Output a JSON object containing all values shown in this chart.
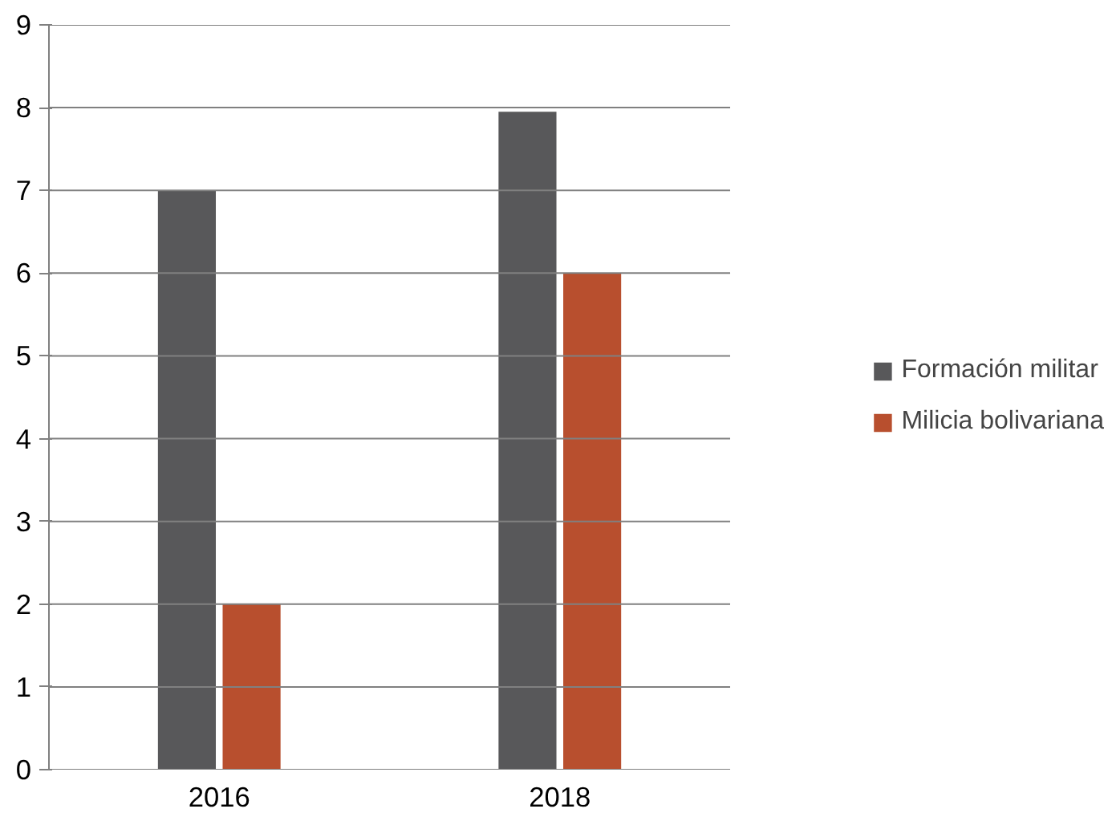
{
  "chart_data": {
    "type": "bar",
    "categories": [
      "2016",
      "2018"
    ],
    "series": [
      {
        "name": "Formación militar",
        "color": "#58585a",
        "values": [
          7,
          7.95
        ]
      },
      {
        "name": "Milicia bolivariana",
        "color": "#b84f2e",
        "values": [
          2,
          6
        ]
      }
    ],
    "ylim": [
      0,
      9
    ],
    "yticks": [
      0,
      1,
      2,
      3,
      4,
      5,
      6,
      7,
      8,
      9
    ],
    "grid": "y",
    "legend": "right"
  }
}
